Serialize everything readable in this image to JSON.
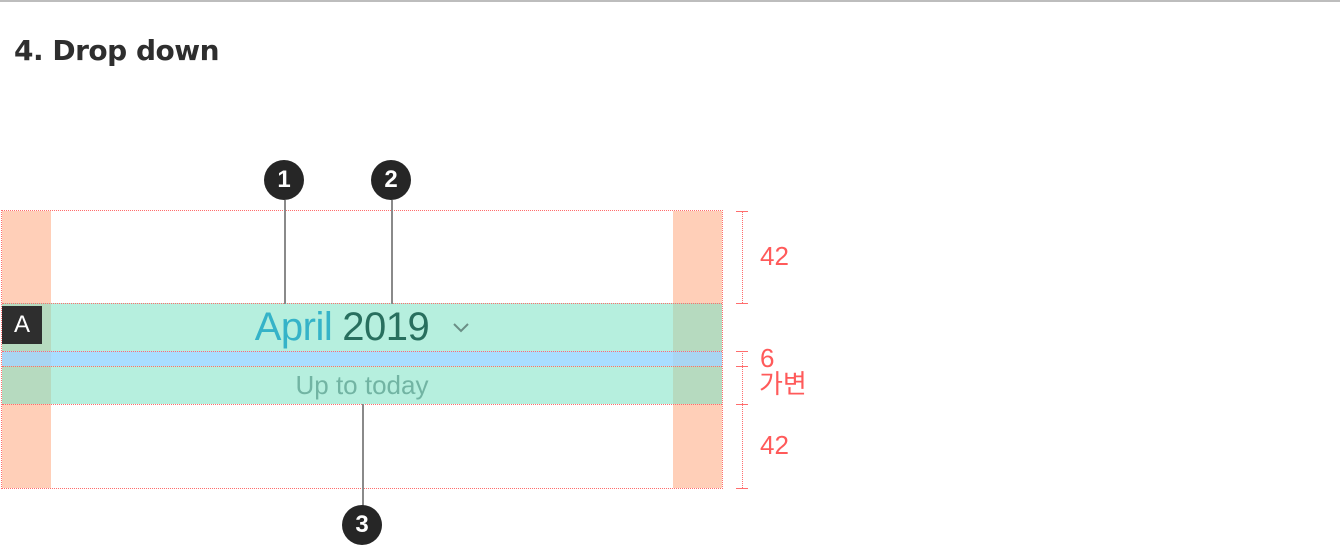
{
  "section": {
    "title": "4. Drop down"
  },
  "component": {
    "badge": "A",
    "month": "April",
    "year": "2019",
    "chevron_icon": "chevron-down-icon",
    "subtitle": "Up to today"
  },
  "markers": [
    "1",
    "2",
    "3"
  ],
  "dimensions": {
    "top_padding": "42",
    "gap": "6",
    "variable": "가변",
    "bottom_padding": "42"
  },
  "colors": {
    "margin_fill": "#ffb28c",
    "content_fill": "#7ce2c4",
    "gap_fill": "#96d6ff",
    "guide_red": "#ff6d6d",
    "month_text": "#35b3c8",
    "year_text": "#286f5e",
    "subtitle_text": "#72b4a3",
    "marker_bg": "#262626"
  }
}
